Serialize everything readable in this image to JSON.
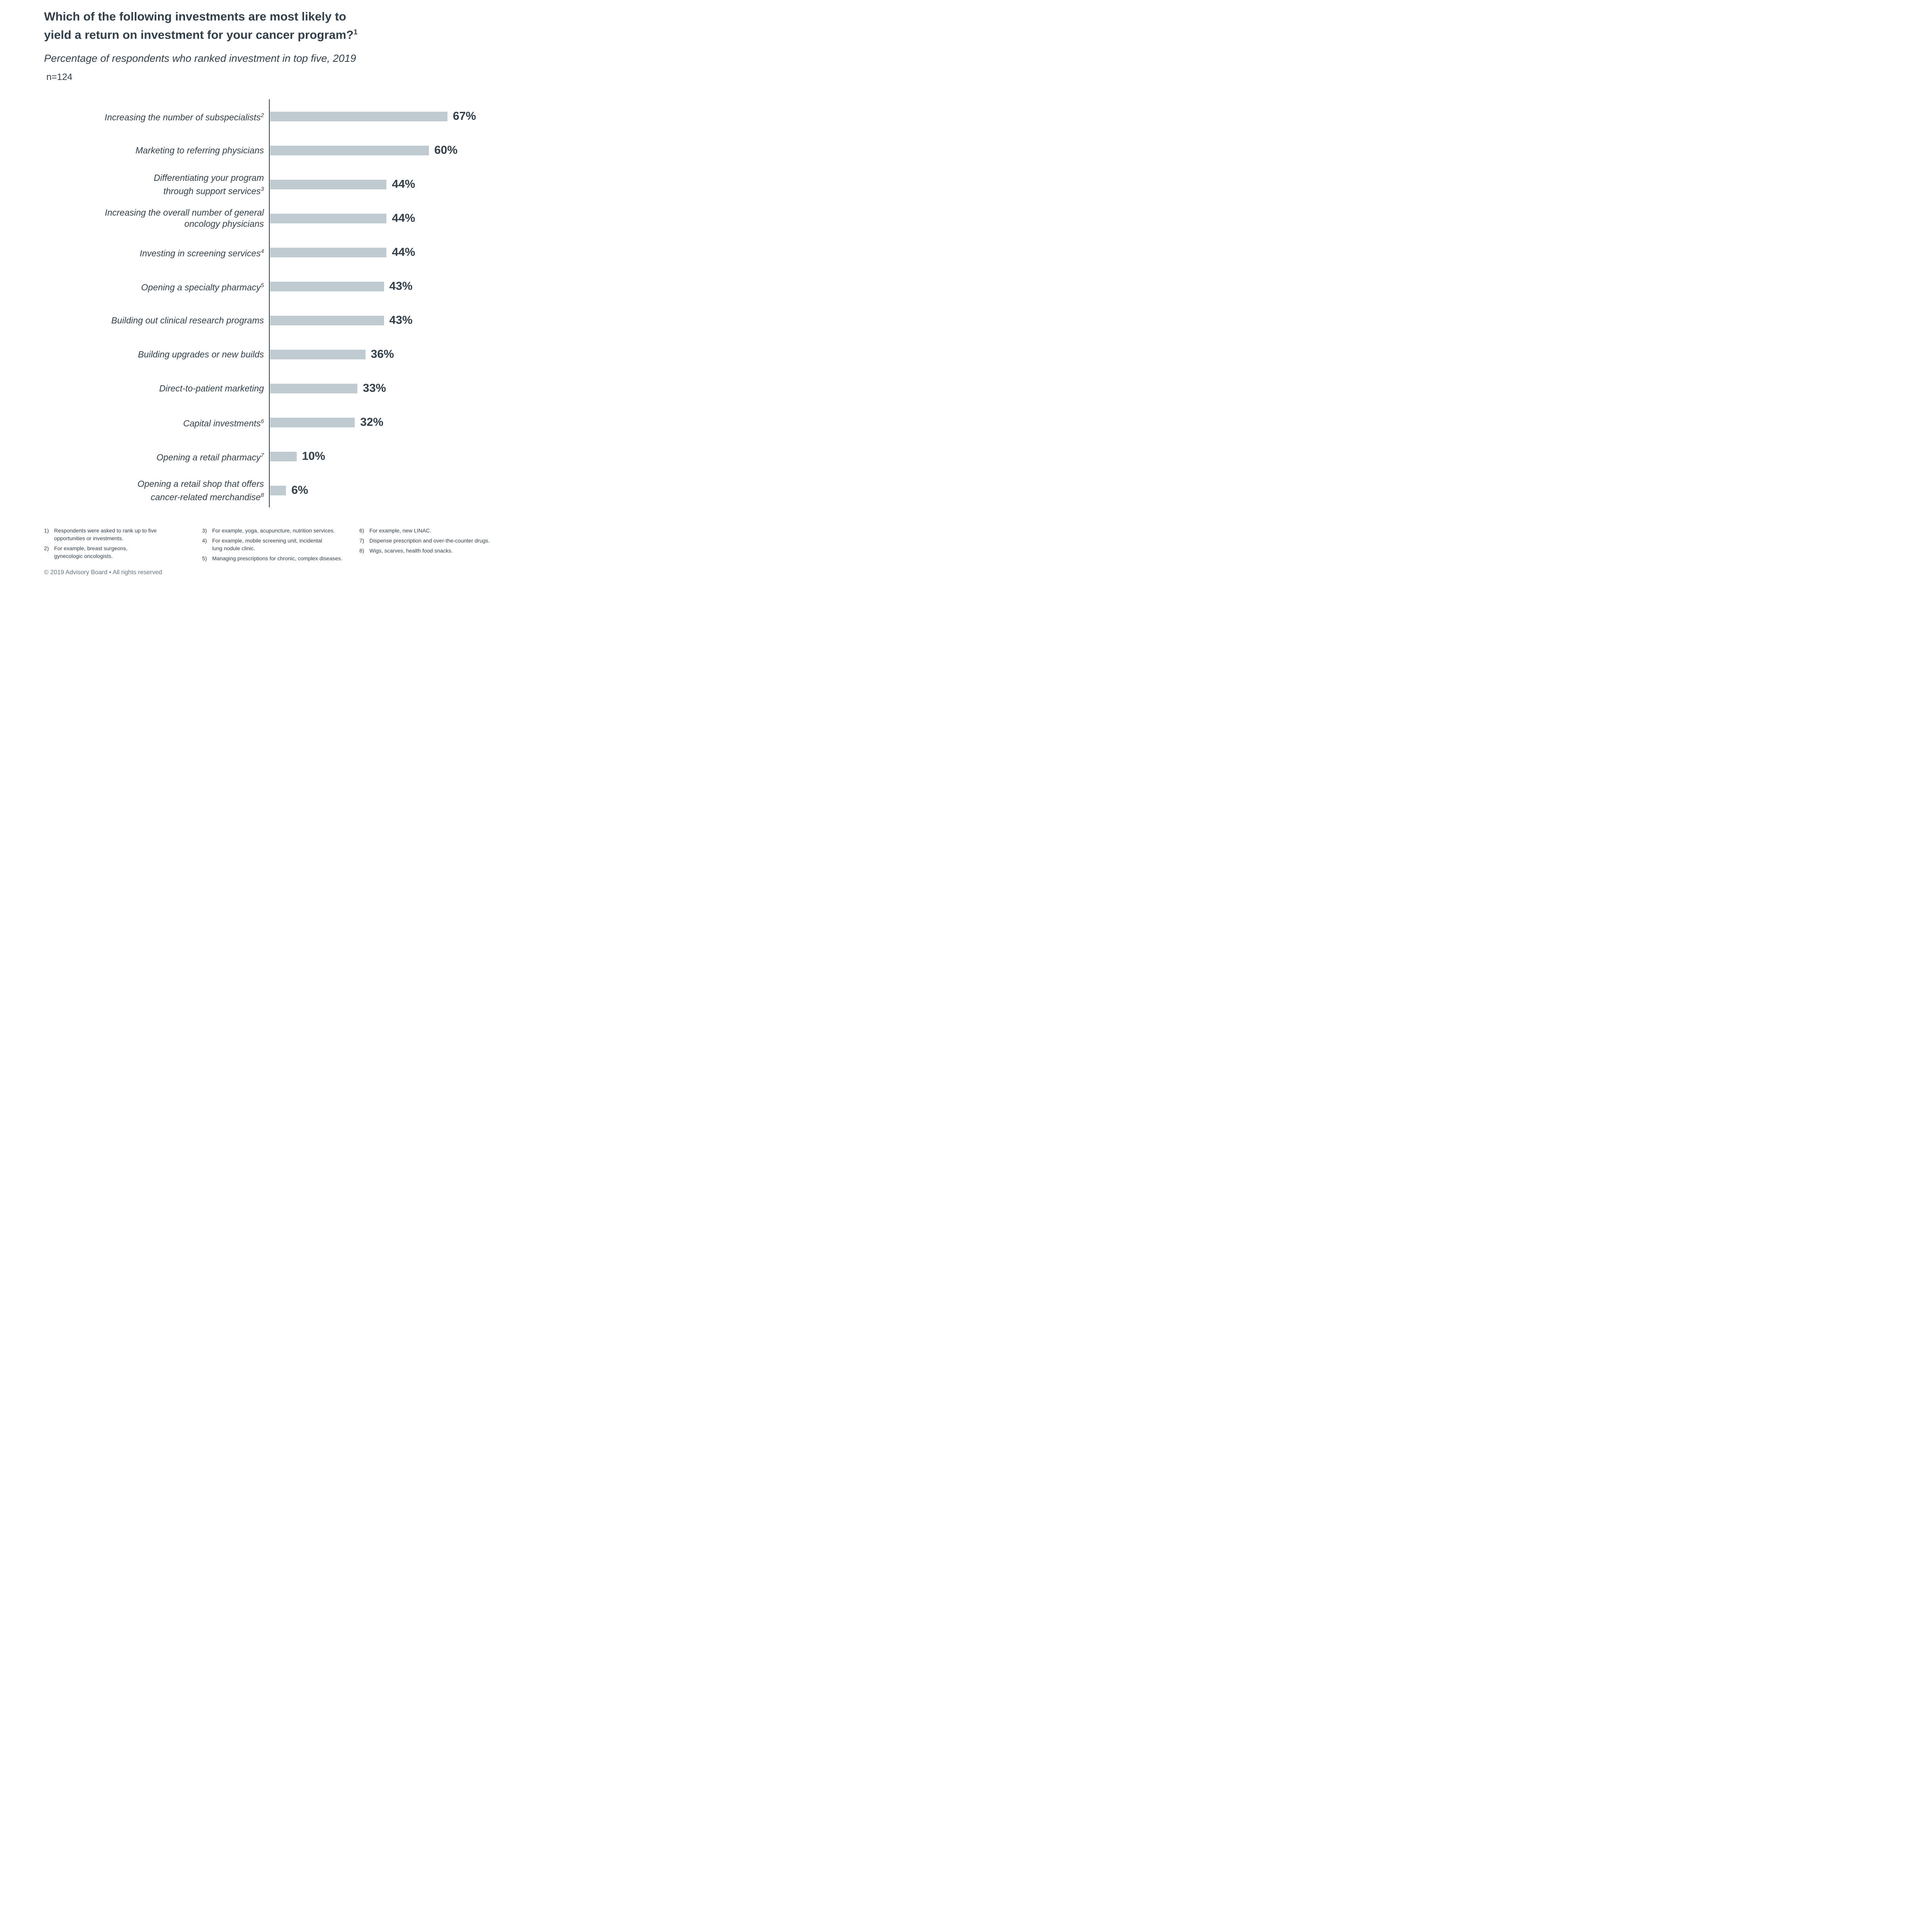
{
  "header": {
    "title": "Which of the following investments are most likely to\nyield a return on investment for your cancer program?",
    "title_sup": "1",
    "subtitle": "Percentage of respondents who ranked investment in top five, 2019",
    "sample_size": "n=124"
  },
  "chart_data": {
    "type": "bar",
    "orientation": "horizontal",
    "unit": "%",
    "grid": false,
    "bar_color": "#C0CAD1",
    "axis_line_color": "#333F48",
    "categories": [
      "Increasing the number of subspecialists²",
      "Marketing to referring physicians",
      "Differentiating your program through support services³",
      "Increasing the overall number of general oncology physicians",
      "Investing in screening services⁴",
      "Opening a specialty pharmacy⁵",
      "Building out clinical research programs",
      "Building upgrades or new builds",
      "Direct-to-patient marketing",
      "Capital investments⁶",
      "Opening a retail pharmacy⁷",
      "Opening a retail shop that offers cancer-related merchandise⁸"
    ],
    "values": [
      67,
      60,
      44,
      44,
      44,
      43,
      43,
      36,
      33,
      32,
      10,
      6
    ],
    "data_labels": [
      "67%",
      "60%",
      "44%",
      "44%",
      "44%",
      "43%",
      "43%",
      "36%",
      "33%",
      "32%",
      "10%",
      "6%"
    ],
    "bars": [
      {
        "label": "Increasing the number of subspecialists",
        "sup": "2",
        "value": 67
      },
      {
        "label": "Marketing to referring physicians",
        "sup": "",
        "value": 60
      },
      {
        "label": "Differentiating your program\nthrough support services",
        "sup": "3",
        "value": 44
      },
      {
        "label": "Increasing the overall number of general\noncology physicians",
        "sup": "",
        "value": 44
      },
      {
        "label": "Investing in screening services",
        "sup": "4",
        "value": 44
      },
      {
        "label": "Opening a specialty pharmacy",
        "sup": "5",
        "value": 43
      },
      {
        "label": "Building out clinical research programs",
        "sup": "",
        "value": 43
      },
      {
        "label": "Building upgrades or new builds",
        "sup": "",
        "value": 36
      },
      {
        "label": "Direct-to-patient marketing",
        "sup": "",
        "value": 33
      },
      {
        "label": "Capital investments",
        "sup": "6",
        "value": 32
      },
      {
        "label": "Opening a retail pharmacy",
        "sup": "7",
        "value": 10
      },
      {
        "label": "Opening a retail shop that offers\ncancer-related merchandise",
        "sup": "8",
        "value": 6
      }
    ]
  },
  "footnotes": {
    "columns": [
      [
        {
          "num": "1)",
          "text": "Respondents were asked to rank up to five\nopportunities or investments."
        },
        {
          "num": "2)",
          "text": "For example, breast surgeons,\ngynecologic oncologists."
        }
      ],
      [
        {
          "num": "3)",
          "text": "For example, yoga, acupuncture, nutrition services."
        },
        {
          "num": "4)",
          "text": "For example, mobile screening unit, incidental\nlung nodule clinic."
        },
        {
          "num": "5)",
          "text": "Managing prescriptions for chronic, complex diseases."
        }
      ],
      [
        {
          "num": "6)",
          "text": "For example, new LINAC."
        },
        {
          "num": "7)",
          "text": "Dispense prescription and over-the-counter drugs."
        },
        {
          "num": "8)",
          "text": "Wigs, scarves, health food snacks."
        }
      ]
    ]
  },
  "footer": {
    "copyright": "© 2019 Advisory Board • All rights reserved"
  }
}
